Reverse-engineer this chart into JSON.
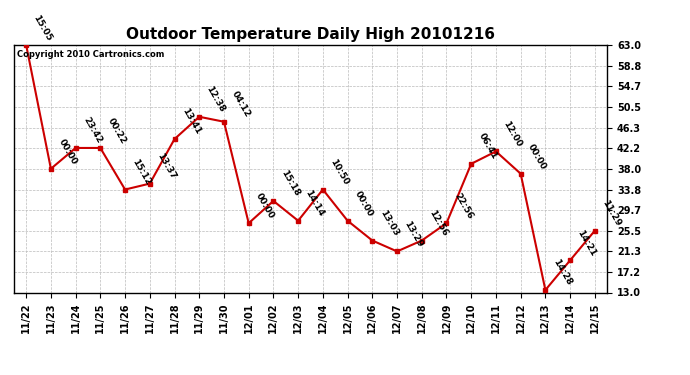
{
  "title": "Outdoor Temperature Daily High 20101216",
  "copyright_text": "Copyright 2010 Cartronics.com",
  "x_labels": [
    "11/22",
    "11/23",
    "11/24",
    "11/25",
    "11/26",
    "11/27",
    "11/28",
    "11/29",
    "11/30",
    "12/01",
    "12/02",
    "12/03",
    "12/04",
    "12/05",
    "12/06",
    "12/07",
    "12/08",
    "12/09",
    "12/10",
    "12/11",
    "12/12",
    "12/13",
    "12/14",
    "12/15"
  ],
  "y_values": [
    63.0,
    38.0,
    42.2,
    42.2,
    33.8,
    35.0,
    44.0,
    48.5,
    47.5,
    27.0,
    31.5,
    27.5,
    33.8,
    27.5,
    23.5,
    21.3,
    23.5,
    27.0,
    39.0,
    41.5,
    37.0,
    13.5,
    19.5,
    25.5
  ],
  "point_labels": [
    "15:05",
    "00:00",
    "23:42",
    "00:22",
    "15:12",
    "13:37",
    "13:41",
    "12:38",
    "04:12",
    "00:00",
    "15:18",
    "14:14",
    "10:50",
    "00:00",
    "13:03",
    "13:29",
    "12:56",
    "22:56",
    "06:41",
    "12:00",
    "00:00",
    "14:28",
    "14:21",
    "11:29"
  ],
  "yticks": [
    13.0,
    17.2,
    21.3,
    25.5,
    29.7,
    33.8,
    38.0,
    42.2,
    46.3,
    50.5,
    54.7,
    58.8,
    63.0
  ],
  "ylim": [
    13.0,
    63.0
  ],
  "line_color": "#cc0000",
  "marker_color": "#cc0000",
  "bg_color": "#ffffff",
  "grid_color": "#bbbbbb",
  "title_fontsize": 11,
  "tick_fontsize": 7,
  "annotation_fontsize": 6.5,
  "annotation_rotation": -60
}
